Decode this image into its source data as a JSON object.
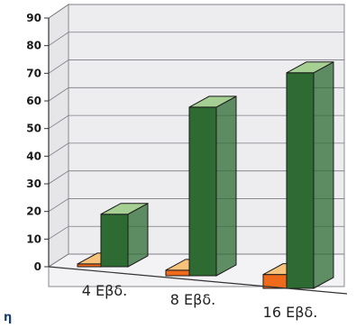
{
  "chart_data": {
    "type": "bar",
    "categories": [
      "4 Εβδ.",
      "8 Εβδ.",
      "16 Εβδ."
    ],
    "series": [
      {
        "values": [
          1,
          2,
          5
        ],
        "color": "#f06a1c",
        "top_color": "#f7c27a"
      },
      {
        "values": [
          19,
          61,
          78
        ],
        "color": "#2e6b33",
        "top_color": "#a6cf93"
      }
    ],
    "yticks": [
      "0",
      "10",
      "20",
      "30",
      "40",
      "50",
      "60",
      "70",
      "80",
      "90"
    ],
    "ylim": [
      0,
      90
    ],
    "grid": true,
    "title": "",
    "xlabel": "",
    "ylabel": ""
  },
  "fragment_text": "η"
}
